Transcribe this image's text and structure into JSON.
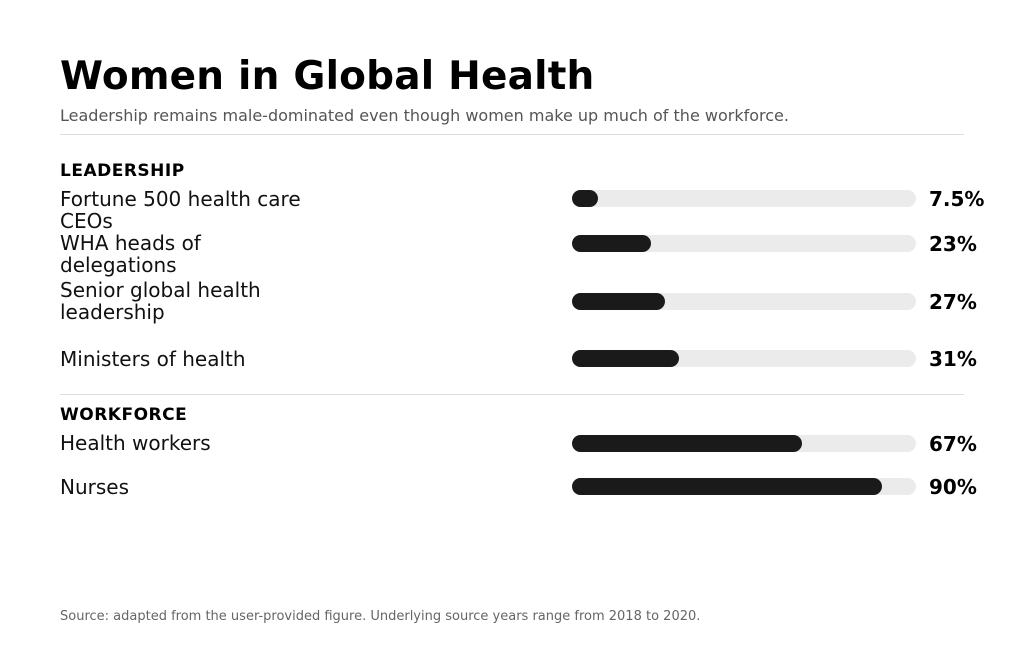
{
  "header": {
    "title": "Women in Global Health",
    "subtitle": "Leadership remains male-dominated even though women make up much of the workforce."
  },
  "sections": [
    {
      "label": "LEADERSHIP",
      "rows": [
        {
          "label": "Fortune 500 health care CEOs",
          "value": 7.5,
          "display": "7.5%"
        },
        {
          "label": "WHA heads of delegations",
          "value": 23,
          "display": "23%"
        },
        {
          "label": "Senior global health leadership",
          "value": 27,
          "display": "27%"
        },
        {
          "label": "Ministers of health",
          "value": 31,
          "display": "31%"
        }
      ]
    },
    {
      "label": "WORKFORCE",
      "rows": [
        {
          "label": "Health workers",
          "value": 67,
          "display": "67%"
        },
        {
          "label": "Nurses",
          "value": 90,
          "display": "90%"
        }
      ]
    }
  ],
  "footer": {
    "source": "Source: adapted from the user-provided figure. Underlying source years range from 2018 to 2020."
  },
  "colors": {
    "bar_fill": "#1a1a1a",
    "bar_track": "#ebebeb",
    "subtitle": "#555555",
    "rule": "#dddddd"
  },
  "chart_data": {
    "type": "bar",
    "orientation": "horizontal",
    "title": "Women in Global Health",
    "subtitle": "Leadership remains male-dominated even though women make up much of the workforce.",
    "categories": [
      "Fortune 500 health care CEOs",
      "WHA heads of delegations",
      "Senior global health leadership",
      "Ministers of health",
      "Health workers",
      "Nurses"
    ],
    "groups": [
      "LEADERSHIP",
      "LEADERSHIP",
      "LEADERSHIP",
      "LEADERSHIP",
      "WORKFORCE",
      "WORKFORCE"
    ],
    "values": [
      7.5,
      23,
      27,
      31,
      67,
      90
    ],
    "unit": "%",
    "xlabel": "",
    "ylabel": "",
    "xlim": [
      0,
      100
    ],
    "grid": false,
    "legend": null,
    "annotations": [
      "Source: adapted from the user-provided figure. Underlying source years range from 2018 to 2020."
    ]
  }
}
